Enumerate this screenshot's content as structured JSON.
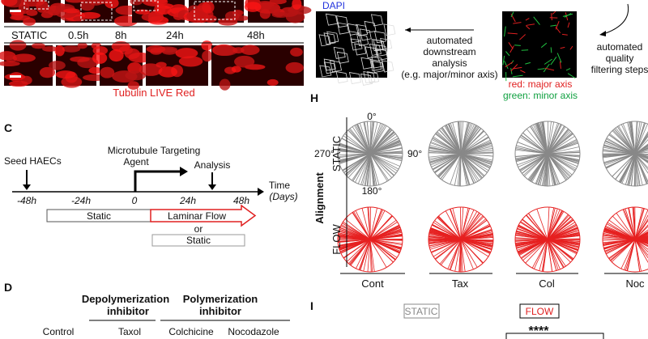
{
  "panel_a": {
    "timepoints": [
      "STATIC",
      "0.5h",
      "8h",
      "24h",
      "48h"
    ],
    "stain": "Tubulin LIVE Red"
  },
  "panel_b": {
    "image_label": "DAPI",
    "downstream": [
      "automated",
      "downstream",
      "analysis",
      "(e.g. major/minor axis)"
    ],
    "filtering": [
      "automated",
      "quality",
      "filtering steps"
    ],
    "legend_red": "red: major axis",
    "legend_green": "green: minor axis"
  },
  "panel_c": {
    "letter": "C",
    "seed": "Seed HAECs",
    "agent": [
      "Microtubule Targeting",
      "Agent"
    ],
    "analysis": "Analysis",
    "ticks": [
      "-48h",
      "-24h",
      "0",
      "24h",
      "48h"
    ],
    "time": [
      "Time",
      "(Days)"
    ],
    "static": "Static",
    "flow": "Laminar Flow",
    "or": "or",
    "static2": "Static"
  },
  "panel_d": {
    "letter": "D",
    "depoly": [
      "Depolymerization",
      "inhibitor"
    ],
    "poly": [
      "Polymerization",
      "inhibitor"
    ],
    "columns": [
      "Control",
      "Taxol",
      "Colchicine",
      "Nocodazole"
    ]
  },
  "panel_h": {
    "letter": "H",
    "angles": [
      "0°",
      "270°",
      "90°",
      "180°"
    ],
    "ylabel": "Alignment",
    "rows": [
      "STATIC",
      "FLOW"
    ],
    "columns": [
      "Cont",
      "Tax",
      "Col",
      "Noc"
    ]
  },
  "panel_i": {
    "letter": "I",
    "static": "STATIC",
    "flow": "FLOW",
    "significance": "****"
  }
}
